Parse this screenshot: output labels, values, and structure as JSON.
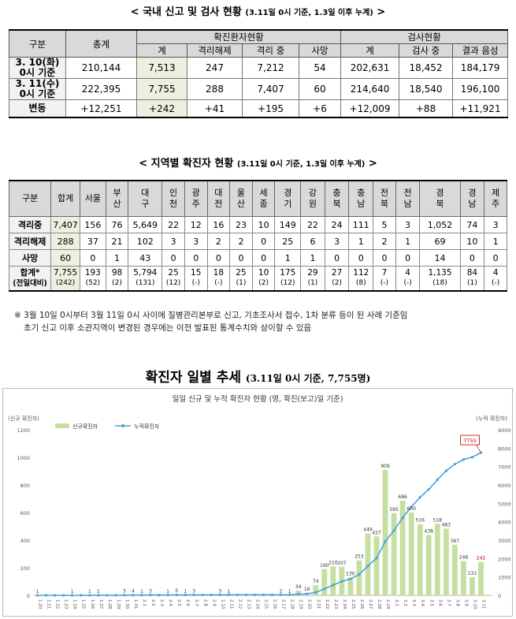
{
  "section1": {
    "title": "< 국내 신고 및 검사 현황",
    "subtitle": "(3.11일 0시 기준, 1.3일 이후 누계)",
    "suffix": ">",
    "header": {
      "division": "구분",
      "total": "총계",
      "confirmed_group": "확진환자현황",
      "test_group": "검사현황",
      "sub": [
        "계",
        "격리해제",
        "격리 중",
        "사망",
        "계",
        "검사 중",
        "결과 음성"
      ]
    },
    "rows": [
      {
        "label": "3. 10(화)\n0시 기준",
        "values": [
          "210,144",
          "7,513",
          "247",
          "7,212",
          "54",
          "202,631",
          "18,452",
          "184,179"
        ]
      },
      {
        "label": "3. 11(수)\n0시 기준",
        "values": [
          "222,395",
          "7,755",
          "288",
          "7,407",
          "60",
          "214,640",
          "18,540",
          "196,100"
        ]
      },
      {
        "label": "변동",
        "values": [
          "+12,251",
          "+242",
          "+41",
          "+195",
          "+6",
          "+12,009",
          "+88",
          "+11,921"
        ]
      }
    ]
  },
  "section2": {
    "title": "< 지역별 확진자 현황",
    "subtitle": "(3.11일 0시 기준, 1.3일 이후 누계)",
    "suffix": ">",
    "header": [
      "구분",
      "합계",
      "서울",
      "부\n산",
      "대\n구",
      "인\n천",
      "광\n주",
      "대\n전",
      "울\n산",
      "세\n종",
      "경\n기",
      "강\n원",
      "충\n북",
      "충\n남",
      "전\n북",
      "전\n남",
      "경\n북",
      "경\n남",
      "제\n주"
    ],
    "rows": [
      {
        "label": "격리중",
        "values": [
          "7,407",
          "156",
          "76",
          "5,649",
          "22",
          "12",
          "16",
          "23",
          "10",
          "149",
          "22",
          "24",
          "111",
          "5",
          "3",
          "1,052",
          "74",
          "3"
        ]
      },
      {
        "label": "격리해제",
        "values": [
          "288",
          "37",
          "21",
          "102",
          "3",
          "3",
          "2",
          "2",
          "0",
          "25",
          "6",
          "3",
          "1",
          "2",
          "1",
          "69",
          "10",
          "1"
        ]
      },
      {
        "label": "사망",
        "values": [
          "60",
          "0",
          "1",
          "43",
          "0",
          "0",
          "0",
          "0",
          "0",
          "1",
          "1",
          "0",
          "0",
          "0",
          "0",
          "14",
          "0",
          "0"
        ]
      }
    ],
    "total_row": {
      "label": "합계*",
      "label2": "(전일대비)",
      "values": [
        "7,755",
        "193",
        "98",
        "5,794",
        "25",
        "15",
        "18",
        "25",
        "10",
        "175",
        "29",
        "27",
        "112",
        "7",
        "4",
        "1,135",
        "84",
        "4"
      ],
      "prev": [
        "(242)",
        "(52)",
        "(2)",
        "(131)",
        "(12)",
        "(-)",
        "(-)",
        "(1)",
        "(2)",
        "(12)",
        "(1)",
        "(2)",
        "(8)",
        "(-)",
        "(-)",
        "(18)",
        "(1)",
        "(-)"
      ]
    }
  },
  "note": {
    "line1": "※ 3월 10일 0시부터 3월 11일 0시 사이에 질병관리본부로 신고, 기초조사서 접수, 1차 분류 등이 된 사례 기준임",
    "line2": "초기 신고 이후 소관지역이 변경된 경우에는 이전 발표된 통계수치와 상이할 수 있음"
  },
  "section3": {
    "title": "확진자 일별 추세",
    "subtitle": "(3.11일 0시 기준, 7,755명)"
  },
  "chart_data": {
    "type": "bar",
    "title": "일일 신규 및 누적 확진자 현황 (명, 확진(보고)일 기준)",
    "left_axis_label": "(신규 확진자)",
    "right_axis_label": "(누적 확진자)",
    "ylim_left": [
      0,
      1200
    ],
    "ylim_right": [
      0,
      9000
    ],
    "left_ticks": [
      0,
      200,
      400,
      600,
      800,
      1000,
      1200
    ],
    "right_ticks": [
      0,
      1000,
      2000,
      3000,
      4000,
      5000,
      6000,
      7000,
      8000,
      9000
    ],
    "categories": [
      "1.20",
      "1.21",
      "1.22",
      "1.23",
      "1.24",
      "1.25",
      "1.26",
      "1.27",
      "1.28",
      "1.29",
      "1.30",
      "1.31",
      "2.1",
      "2.2",
      "2.3",
      "2.4",
      "2.5",
      "2.6",
      "2.7",
      "2.8",
      "2.9",
      "2.10",
      "2.11",
      "2.12",
      "2.13",
      "2.14",
      "2.15",
      "2.16",
      "2.17",
      "2.18",
      "2.19",
      "2.20",
      "2.21",
      "2.22",
      "2.23",
      "2.24",
      "2.25",
      "2.26",
      "2.27",
      "2.28",
      "2.29",
      "3.1",
      "3.2",
      "3.3",
      "3.4",
      "3.5",
      "3.6",
      "3.7",
      "3.8",
      "3.9",
      "3.10",
      "3.11"
    ],
    "series": [
      {
        "name": "신규확진자",
        "type": "bar",
        "color": "#c5dfa0",
        "values": [
          1,
          0,
          0,
          0,
          1,
          0,
          1,
          1,
          0,
          0,
          3,
          4,
          1,
          3,
          0,
          1,
          5,
          1,
          3,
          0,
          0,
          3,
          1,
          0,
          0,
          0,
          0,
          0,
          2,
          1,
          34,
          16,
          74,
          190,
          210,
          207,
          130,
          253,
          449,
          427,
          909,
          595,
          686,
          600,
          516,
          438,
          518,
          483,
          367,
          248,
          131,
          242
        ]
      },
      {
        "name": "누적확진자",
        "type": "line",
        "color": "#4aa3d8",
        "values": [
          1,
          1,
          1,
          1,
          2,
          2,
          3,
          4,
          4,
          4,
          7,
          11,
          12,
          15,
          15,
          16,
          21,
          22,
          25,
          25,
          25,
          28,
          29,
          29,
          29,
          29,
          29,
          29,
          31,
          32,
          66,
          82,
          156,
          346,
          556,
          763,
          893,
          1146,
          1595,
          2022,
          2931,
          3526,
          4212,
          4812,
          5328,
          5766,
          6284,
          6767,
          7134,
          7382,
          7513,
          7755
        ]
      }
    ],
    "bar_labels": [
      {
        "i": 0,
        "v": "1"
      },
      {
        "i": 4,
        "v": "1"
      },
      {
        "i": 6,
        "v": "1"
      },
      {
        "i": 7,
        "v": "1"
      },
      {
        "i": 10,
        "v": "3"
      },
      {
        "i": 11,
        "v": "4"
      },
      {
        "i": 12,
        "v": "1"
      },
      {
        "i": 13,
        "v": "3"
      },
      {
        "i": 15,
        "v": "1"
      },
      {
        "i": 16,
        "v": "5"
      },
      {
        "i": 17,
        "v": "1"
      },
      {
        "i": 18,
        "v": "3"
      },
      {
        "i": 21,
        "v": "3"
      },
      {
        "i": 22,
        "v": "1"
      },
      {
        "i": 28,
        "v": "2"
      },
      {
        "i": 29,
        "v": "1"
      },
      {
        "i": 30,
        "v": "34"
      },
      {
        "i": 31,
        "v": "16"
      },
      {
        "i": 32,
        "v": "74"
      },
      {
        "i": 33,
        "v": "190"
      },
      {
        "i": 34,
        "v": "210"
      },
      {
        "i": 35,
        "v": "207"
      },
      {
        "i": 36,
        "v": "130"
      },
      {
        "i": 37,
        "v": "253"
      },
      {
        "i": 38,
        "v": "449"
      },
      {
        "i": 39,
        "v": "427"
      },
      {
        "i": 40,
        "v": "909"
      },
      {
        "i": 41,
        "v": "595"
      },
      {
        "i": 42,
        "v": "686"
      },
      {
        "i": 43,
        "v": "600"
      },
      {
        "i": 44,
        "v": "516"
      },
      {
        "i": 45,
        "v": "438"
      },
      {
        "i": 46,
        "v": "518"
      },
      {
        "i": 47,
        "v": "483"
      },
      {
        "i": 48,
        "v": "367"
      },
      {
        "i": 49,
        "v": "248"
      },
      {
        "i": 50,
        "v": "131"
      },
      {
        "i": 51,
        "v": "242"
      }
    ],
    "callout": "7755",
    "grid": false,
    "legend": "top-left"
  }
}
